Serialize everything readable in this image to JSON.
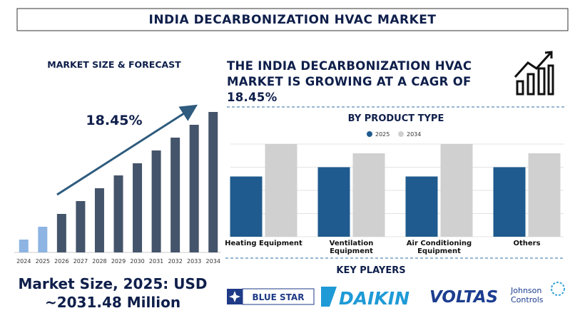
{
  "header": {
    "title": "INDIA DECARBONIZATION HVAC MARKET"
  },
  "chart_data": [
    {
      "type": "bar",
      "title": "MARKET SIZE & FORECAST",
      "categories": [
        "2024",
        "2025",
        "2026",
        "2027",
        "2028",
        "2029",
        "2030",
        "2031",
        "2032",
        "2033",
        "2034"
      ],
      "values": [
        18,
        36,
        54,
        72,
        90,
        108,
        125,
        143,
        161,
        179,
        197
      ],
      "colors": [
        "#8db4e2",
        "#8db4e2",
        "#44546a",
        "#44546a",
        "#44546a",
        "#44546a",
        "#44546a",
        "#44546a",
        "#44546a",
        "#44546a",
        "#44546a"
      ],
      "ylim": [
        0,
        200
      ],
      "annotation": "18.45%"
    },
    {
      "type": "grouped-bar",
      "title": "BY PRODUCT TYPE",
      "categories": [
        "Heating Equipment",
        "Ventilation Equipment",
        "Air Conditioning Equipment",
        "Others"
      ],
      "series": [
        {
          "name": "2025",
          "color": "#1f5b8e",
          "values": [
            2.6,
            3.0,
            2.6,
            3.0
          ]
        },
        {
          "name": "2034",
          "color": "#d0d0d0",
          "values": [
            4.0,
            3.6,
            4.0,
            3.6
          ]
        }
      ],
      "ylim": [
        0,
        4
      ],
      "yticks": [
        0,
        1,
        2,
        3,
        4
      ],
      "grid": true
    }
  ],
  "headline": "THE INDIA DECARBONIZATION HVAC MARKET IS GROWING AT A CAGR OF 18.45%",
  "market_size": "Market Size, 2025: USD ~2031.48 Million",
  "key_players": {
    "title": "KEY PLAYERS",
    "names": [
      "BLUE STAR",
      "DAIKIN",
      "VOLTAS",
      "Johnson Controls"
    ]
  }
}
